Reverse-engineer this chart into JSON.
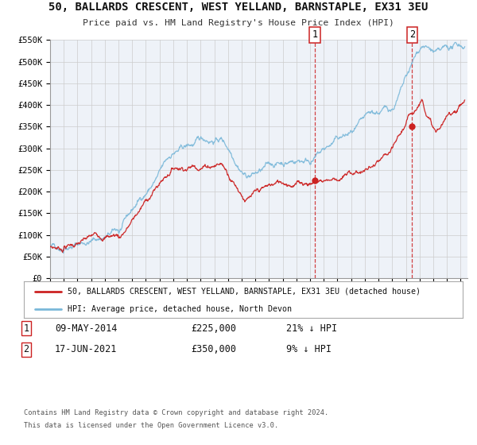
{
  "title": "50, BALLARDS CRESCENT, WEST YELLAND, BARNSTAPLE, EX31 3EU",
  "subtitle": "Price paid vs. HM Land Registry's House Price Index (HPI)",
  "ylim": [
    0,
    550000
  ],
  "xlim_start": 1995.0,
  "xlim_end": 2025.5,
  "yticks": [
    0,
    50000,
    100000,
    150000,
    200000,
    250000,
    300000,
    350000,
    400000,
    450000,
    500000,
    550000
  ],
  "ytick_labels": [
    "£0",
    "£50K",
    "£100K",
    "£150K",
    "£200K",
    "£250K",
    "£300K",
    "£350K",
    "£400K",
    "£450K",
    "£500K",
    "£550K"
  ],
  "hpi_color": "#7ab8d9",
  "price_color": "#cc2222",
  "vline_color": "#cc2222",
  "grid_color": "#cccccc",
  "background_color": "#eef2f8",
  "purchase1_x": 2014.36,
  "purchase1_y": 225000,
  "purchase2_x": 2021.46,
  "purchase2_y": 350000,
  "purchase1_date": "09-MAY-2014",
  "purchase1_price": "£225,000",
  "purchase1_pct": "21% ↓ HPI",
  "purchase2_date": "17-JUN-2021",
  "purchase2_price": "£350,000",
  "purchase2_pct": "9% ↓ HPI",
  "legend_label1": "50, BALLARDS CRESCENT, WEST YELLAND, BARNSTAPLE, EX31 3EU (detached house)",
  "legend_label2": "HPI: Average price, detached house, North Devon",
  "footer_line1": "Contains HM Land Registry data © Crown copyright and database right 2024.",
  "footer_line2": "This data is licensed under the Open Government Licence v3.0."
}
